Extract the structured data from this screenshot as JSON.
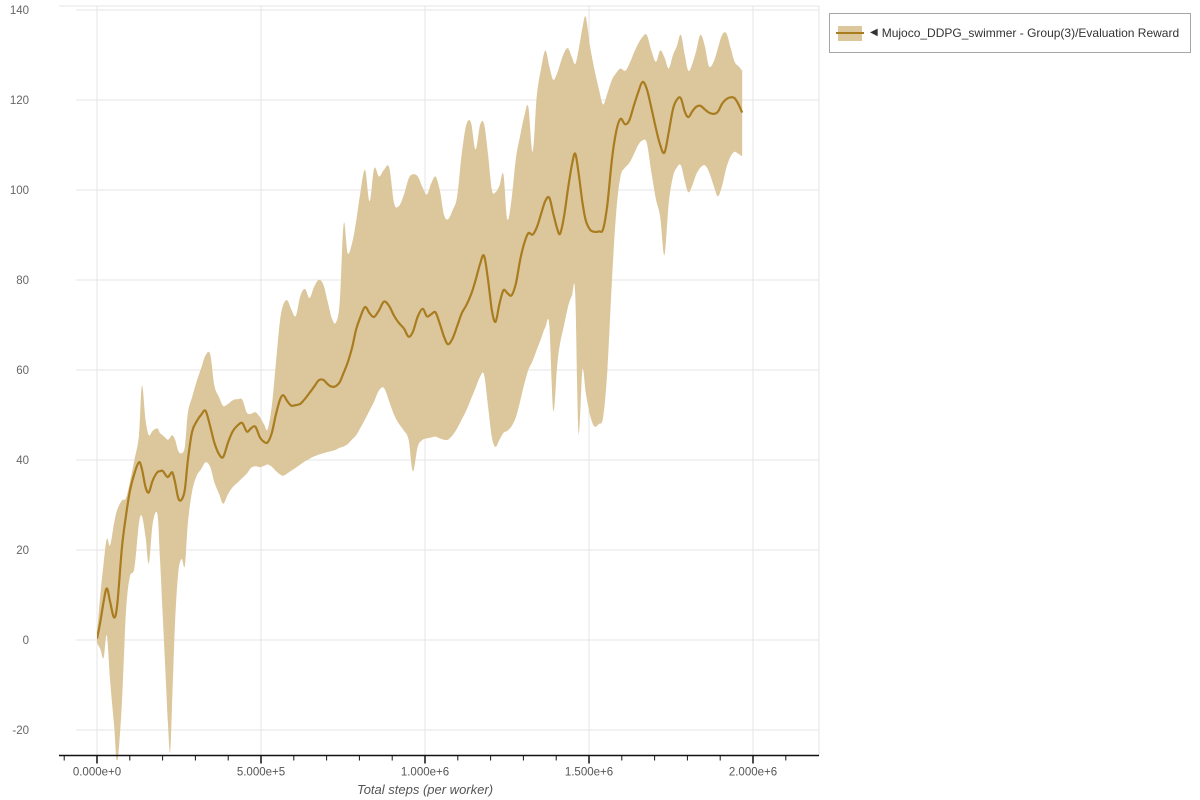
{
  "axes": {
    "x_title": "Total steps (per worker)",
    "x_ticks": [
      {
        "value": 0,
        "label": "0.000e+0"
      },
      {
        "value": 500000,
        "label": "5.000e+5"
      },
      {
        "value": 1000000,
        "label": "1.000e+6"
      },
      {
        "value": 1500000,
        "label": "1.500e+6"
      },
      {
        "value": 2000000,
        "label": "2.000e+6"
      }
    ],
    "x_minor": {
      "start": -100000,
      "end": 2100000,
      "step": 100000
    },
    "y_ticks": [
      {
        "value": 140,
        "label": "140"
      },
      {
        "value": 120,
        "label": "120"
      },
      {
        "value": 100,
        "label": "100"
      },
      {
        "value": 80,
        "label": "80"
      },
      {
        "value": 60,
        "label": "60"
      },
      {
        "value": 40,
        "label": "40"
      },
      {
        "value": 20,
        "label": "20"
      },
      {
        "value": 0,
        "label": "0"
      },
      {
        "value": -20,
        "label": "-20"
      }
    ]
  },
  "legend": {
    "marker": "◀",
    "label": "Mujoco_DDPG_swimmer - Group(3)/Evaluation Reward"
  },
  "colors": {
    "line": "#a87c1f",
    "band": "#dcc79c",
    "grid": "#e4e4e4",
    "axis": "#111111",
    "y_tick_label": "#666666",
    "x_tick_label": "#555555",
    "background": "#ffffff"
  },
  "chart_data": {
    "type": "line",
    "title": "",
    "xlabel": "Total steps (per worker)",
    "ylabel": "",
    "xlim": [
      -115000,
      2200000
    ],
    "ylim": [
      -25.5,
      140.5
    ],
    "grid": true,
    "legend_position": "top-right",
    "series": [
      {
        "name": "Mujoco_DDPG_swimmer - Group(3)/Evaluation Reward",
        "color": "#a87c1f",
        "band_color": "#dcc79c",
        "x": [
          0,
          10000,
          20000,
          30000,
          40000,
          52000,
          62000,
          76000,
          88000,
          100000,
          114000,
          128000,
          137000,
          148000,
          158000,
          170000,
          184000,
          192000,
          200000,
          208000,
          216000,
          223000,
          230000,
          238000,
          248000,
          258000,
          268000,
          277000,
          290000,
          304000,
          318000,
          331000,
          345000,
          358000,
          372000,
          385000,
          400000,
          414000,
          429000,
          443000,
          457000,
          470000,
          483000,
          497000,
          510000,
          520000,
          533000,
          546000,
          558000,
          568000,
          580000,
          592000,
          606000,
          620000,
          634000,
          648000,
          662000,
          676000,
          690000,
          704000,
          716000,
          728000,
          740000,
          752000,
          764000,
          777000,
          790000,
          802000,
          817000,
          831000,
          845000,
          860000,
          875000,
          891000,
          906000,
          921000,
          936000,
          950000,
          963000,
          978000,
          993000,
          1006000,
          1019000,
          1032000,
          1045000,
          1058000,
          1070000,
          1084000,
          1098000,
          1112000,
          1126000,
          1140000,
          1154000,
          1168000,
          1180000,
          1192000,
          1204000,
          1215000,
          1227000,
          1239000,
          1251000,
          1264000,
          1277000,
          1290000,
          1303000,
          1315000,
          1328000,
          1341000,
          1354000,
          1367000,
          1379000,
          1391000,
          1403000,
          1412000,
          1424000,
          1436000,
          1448000,
          1458000,
          1468000,
          1480000,
          1490000,
          1503000,
          1516000,
          1530000,
          1543000,
          1556000,
          1570000,
          1583000,
          1596000,
          1610000,
          1623000,
          1637000,
          1650000,
          1663000,
          1676000,
          1690000,
          1704000,
          1717000,
          1730000,
          1743000,
          1756000,
          1768000,
          1780000,
          1792000,
          1803000,
          1815000,
          1827000,
          1840000,
          1853000,
          1866000,
          1880000,
          1893000,
          1906000,
          1919000,
          1932000,
          1944000,
          1956000,
          1967000
        ],
        "y": [
          0.3,
          4,
          8.5,
          11.5,
          8.5,
          5,
          8,
          20.5,
          27.5,
          33,
          37,
          39.5,
          38,
          34,
          32.8,
          35.5,
          37.3,
          37.5,
          37.6,
          36.8,
          36.2,
          36.8,
          37.2,
          35,
          31.5,
          31.2,
          33.5,
          40,
          46.3,
          48.6,
          50.1,
          50.9,
          47.5,
          43.8,
          41.3,
          40.7,
          44,
          46.4,
          47.7,
          48.2,
          46.3,
          47.1,
          47.4,
          45,
          44,
          43.9,
          46,
          50.3,
          53.4,
          54.4,
          53.1,
          52.1,
          52.2,
          52.5,
          53.6,
          54.9,
          56.3,
          57.7,
          57.8,
          56.8,
          56.3,
          56.4,
          57.3,
          59.4,
          61.6,
          64.8,
          69,
          71.6,
          74,
          72.6,
          71.8,
          73.3,
          75.2,
          74.2,
          72,
          70.4,
          69.2,
          67.4,
          68.5,
          71.9,
          73.6,
          71.9,
          72.4,
          72.8,
          70.3,
          67.4,
          65.7,
          67,
          69.7,
          72.6,
          74.4,
          76.7,
          79.9,
          83.6,
          85.4,
          80.1,
          73.2,
          70.7,
          74.7,
          77.7,
          77.1,
          76.6,
          79.2,
          84.4,
          88.3,
          90.4,
          90.1,
          91.7,
          94.7,
          97.6,
          98.3,
          94.8,
          91.4,
          90.3,
          94.2,
          100.3,
          105.6,
          108.1,
          103.9,
          97.3,
          93.3,
          91.2,
          90.7,
          90.8,
          91.3,
          96.8,
          106.9,
          113,
          115.8,
          114.6,
          115.5,
          118.8,
          121.7,
          124,
          122.5,
          118.3,
          113.7,
          110,
          108.3,
          112.8,
          118,
          120.1,
          120.4,
          117.4,
          116.2,
          117.5,
          118.5,
          118.7,
          117.9,
          117.2,
          116.9,
          117.4,
          119.2,
          120.2,
          120.6,
          120.4,
          119,
          117.2
        ],
        "band_low": [
          -0.6,
          -2,
          -4,
          1,
          -9,
          -19,
          -27,
          -14,
          6,
          14,
          16,
          26,
          27.5,
          23,
          17,
          26,
          28,
          18,
          6,
          -6,
          -18,
          -25,
          -12,
          4,
          15,
          18,
          16.5,
          26,
          33,
          36.5,
          38,
          39.5,
          38.5,
          35,
          32.5,
          30.3,
          32.5,
          34,
          35,
          36,
          37,
          38.3,
          38.6,
          38.4,
          38.7,
          39,
          38.5,
          37.5,
          36.8,
          36.5,
          37,
          37.6,
          38.3,
          39,
          39.7,
          40.3,
          40.8,
          41.2,
          41.5,
          41.8,
          42,
          42.3,
          42.7,
          43,
          43.5,
          44.5,
          45.5,
          47,
          49,
          51,
          53,
          55.5,
          56,
          53,
          50,
          48,
          46.5,
          44.5,
          37.5,
          43,
          44.5,
          44.8,
          45,
          45.2,
          44.8,
          44.5,
          44.5,
          45.5,
          47,
          49,
          51,
          53.5,
          56,
          58.5,
          59,
          52,
          45,
          42.9,
          44.5,
          46,
          46.5,
          47.5,
          49.5,
          53,
          57,
          60,
          62,
          64.5,
          67,
          69.5,
          70,
          51,
          61,
          66,
          70,
          74,
          76.5,
          77,
          46,
          60,
          55,
          50,
          47.5,
          48,
          49.5,
          60,
          80,
          95,
          103,
          105,
          106,
          108,
          110,
          111,
          110.5,
          104,
          98,
          94,
          85.5,
          97,
          103,
          105,
          105.5,
          102,
          99.5,
          101,
          103.5,
          105,
          105.5,
          104,
          101,
          98.6,
          101,
          105,
          107.5,
          108.5,
          108,
          107.5
        ],
        "band_high": [
          1.2,
          10,
          17,
          22.5,
          21,
          26,
          29,
          31,
          31.5,
          35,
          40,
          45.5,
          56.5,
          49,
          45.5,
          46.5,
          47,
          46,
          45.5,
          45,
          44.5,
          45,
          45.5,
          44.5,
          42,
          41.5,
          43,
          50.5,
          54,
          57.5,
          60.5,
          63.3,
          63.5,
          56.5,
          54,
          52,
          52.5,
          53.3,
          53.5,
          53.4,
          50.5,
          50.3,
          50.6,
          49.5,
          47.8,
          46.8,
          52,
          62,
          71,
          74.5,
          75.5,
          73.5,
          72,
          76.5,
          78,
          76,
          78.5,
          80,
          79,
          75,
          71.5,
          70.5,
          75,
          92.5,
          86,
          88,
          93,
          99,
          104.5,
          97.5,
          104.8,
          103,
          104.5,
          105,
          97,
          96.5,
          99,
          102.5,
          103.5,
          103,
          100.5,
          99,
          101.5,
          103,
          100,
          94.5,
          93.5,
          95.5,
          98.5,
          108,
          114.5,
          115,
          109,
          114.5,
          114.7,
          108,
          100,
          99.5,
          101,
          103.5,
          93.5,
          98,
          107,
          112,
          116.5,
          118.5,
          108.5,
          121,
          127,
          131,
          127.5,
          124.5,
          126,
          128,
          130.5,
          131.5,
          129.5,
          128,
          131,
          136,
          138.5,
          132,
          127,
          122.5,
          119,
          121.5,
          124.5,
          126,
          127,
          126.5,
          128,
          130.5,
          132.5,
          134,
          134.5,
          131,
          128.5,
          131,
          129.5,
          127,
          130,
          132,
          134.5,
          130,
          126.5,
          128,
          131,
          134.5,
          132,
          127.5,
          128.5,
          131.5,
          134.5,
          134.8,
          131.5,
          128.5,
          127.5,
          126.5
        ]
      }
    ]
  }
}
